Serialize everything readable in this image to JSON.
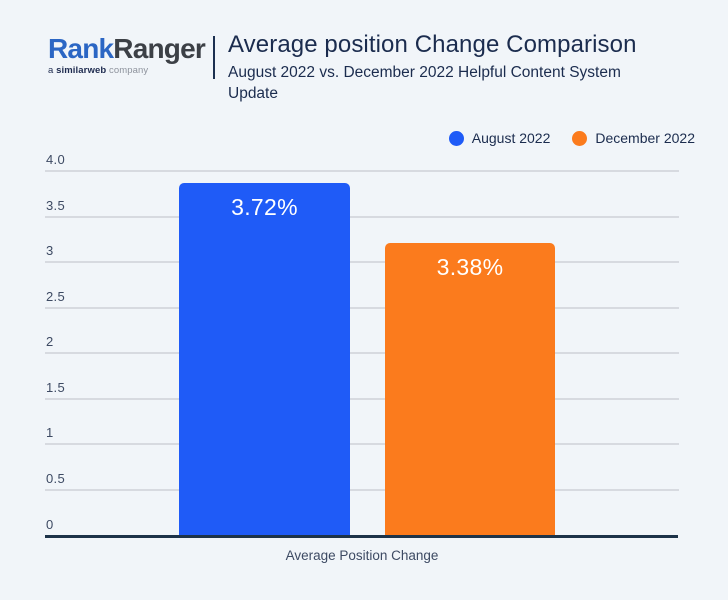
{
  "colors": {
    "background": "#f1f5f9",
    "august_blue": "#1f5bf7",
    "december_orange": "#fb7b1d",
    "axis_line": "#1d3349",
    "gridline": "#d7dae0",
    "title_navy": "#1b2c4e",
    "tick_text": "#3d4a63",
    "logo_blue": "#2b66c4",
    "logo_dark": "#3c4046"
  },
  "header": {
    "logo": {
      "brand_part1": "Rank",
      "brand_part2": "Ranger",
      "tagline_prefix": "a ",
      "tagline_bold": "similarweb",
      "tagline_suffix": " company"
    },
    "title": "Average position Change Comparison",
    "subtitle": "August 2022 vs. December 2022 Helpful Content System Update"
  },
  "legend": [
    {
      "label": "August 2022",
      "color": "#1f5bf7"
    },
    {
      "label": "December 2022",
      "color": "#fb7b1d"
    }
  ],
  "chart_data": {
    "type": "bar",
    "title": "Average position Change Comparison",
    "subtitle": "August 2022 vs. December 2022 Helpful Content System Update",
    "categories": [
      "Average Position Change"
    ],
    "series": [
      {
        "name": "August 2022",
        "values": [
          3.72
        ],
        "label": "3.72%",
        "color": "#1f5bf7"
      },
      {
        "name": "December 2022",
        "values": [
          3.38
        ],
        "label": "3.38%",
        "color": "#fb7b1d"
      }
    ],
    "xlabel": "Average Position Change",
    "ylabel": "",
    "ylim": [
      0,
      4
    ],
    "yticks": [
      "4.0",
      "3.5",
      "3",
      "2.5",
      "2",
      "1.5",
      "1",
      "0.5",
      "0"
    ],
    "grid": true,
    "legend_position": "top-right"
  }
}
